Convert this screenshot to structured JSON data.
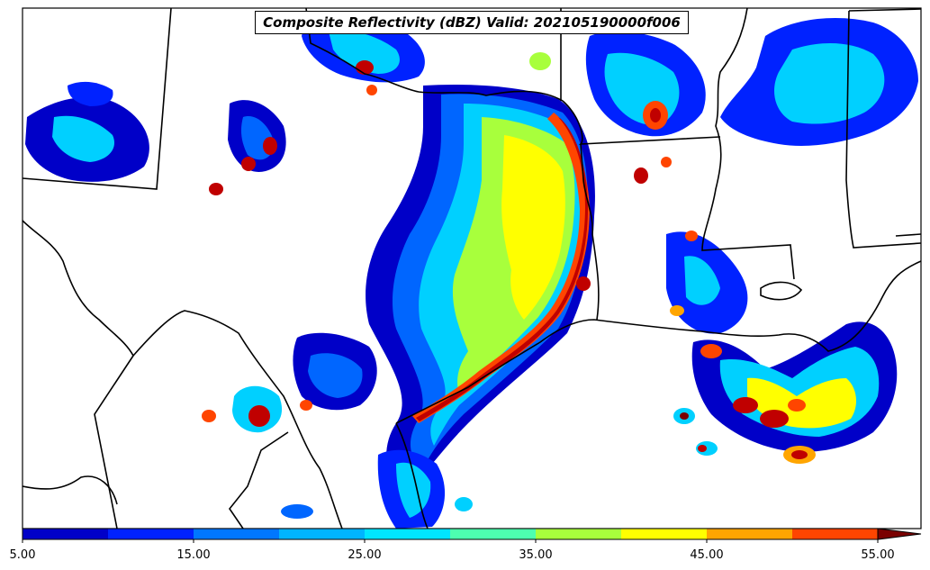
{
  "title": "Composite Reflectivity (dBZ) Valid: 202105190000f006",
  "colorbar": {
    "tick_labels": [
      "5.00",
      "15.00",
      "25.00",
      "35.00",
      "45.00",
      "55.00"
    ],
    "colors": [
      "#0000c8",
      "#0022ff",
      "#0077ff",
      "#00b4ff",
      "#00e5ff",
      "#4dffb0",
      "#a8ff3c",
      "#ffff00",
      "#ffa500",
      "#ff4500",
      "#ff2000",
      "#c00000",
      "#7a0000"
    ]
  },
  "chart_data": {
    "type": "heatmap",
    "title": "Composite Reflectivity (dBZ) Valid: 202105190000f006",
    "variable": "Composite Reflectivity",
    "units": "dBZ",
    "valid_time": "202105190000",
    "forecast_hour": "f006",
    "colorbar_range": [
      5,
      55
    ],
    "colorbar_step": 5,
    "colorbar_ticks": [
      5,
      15,
      25,
      35,
      45,
      55
    ],
    "colorbar_extend": "max"
  }
}
